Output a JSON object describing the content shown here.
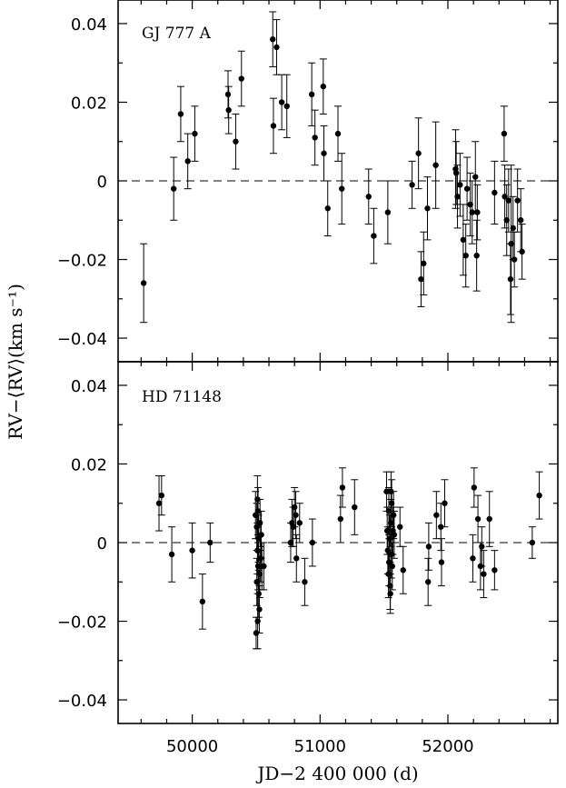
{
  "chart_data": {
    "type": "scatter",
    "shared_x": true,
    "xlabel": "JD−2 400 000 (d)",
    "ylabel": "RV−⟨RV⟩(km s⁻¹)",
    "xlim": [
      49420,
      52860
    ],
    "xticks": [
      {
        "value": 50000,
        "label": "50000"
      },
      {
        "value": 51000,
        "label": "51000"
      },
      {
        "value": 52000,
        "label": "52000"
      }
    ],
    "panels": [
      {
        "label": "GJ 777 A",
        "ylim": [
          -0.046,
          0.046
        ],
        "yticks": [
          {
            "value": 0.04,
            "label": "0.04"
          },
          {
            "value": 0.02,
            "label": "0.02"
          },
          {
            "value": 0,
            "label": "0"
          },
          {
            "value": -0.02,
            "label": "−0.02"
          },
          {
            "value": -0.04,
            "label": "−0.04"
          }
        ],
        "reference_line": 0,
        "points": [
          {
            "x": 49620,
            "y": -0.026,
            "err": 0.01
          },
          {
            "x": 49855,
            "y": -0.002,
            "err": 0.008
          },
          {
            "x": 49910,
            "y": 0.017,
            "err": 0.007
          },
          {
            "x": 49965,
            "y": 0.005,
            "err": 0.007
          },
          {
            "x": 50020,
            "y": 0.012,
            "err": 0.007
          },
          {
            "x": 50280,
            "y": 0.022,
            "err": 0.006
          },
          {
            "x": 50285,
            "y": 0.018,
            "err": 0.006
          },
          {
            "x": 50340,
            "y": 0.01,
            "err": 0.007
          },
          {
            "x": 50385,
            "y": 0.026,
            "err": 0.007
          },
          {
            "x": 50630,
            "y": 0.036,
            "err": 0.007
          },
          {
            "x": 50635,
            "y": 0.014,
            "err": 0.007
          },
          {
            "x": 50660,
            "y": 0.034,
            "err": 0.007
          },
          {
            "x": 50700,
            "y": 0.02,
            "err": 0.007
          },
          {
            "x": 50740,
            "y": 0.019,
            "err": 0.008
          },
          {
            "x": 50935,
            "y": 0.022,
            "err": 0.008
          },
          {
            "x": 50960,
            "y": 0.011,
            "err": 0.007
          },
          {
            "x": 51025,
            "y": 0.024,
            "err": 0.007
          },
          {
            "x": 51030,
            "y": 0.007,
            "err": 0.007
          },
          {
            "x": 51060,
            "y": -0.007,
            "err": 0.007
          },
          {
            "x": 51140,
            "y": 0.012,
            "err": 0.007
          },
          {
            "x": 51170,
            "y": -0.002,
            "err": 0.009
          },
          {
            "x": 51380,
            "y": -0.004,
            "err": 0.007
          },
          {
            "x": 51420,
            "y": -0.014,
            "err": 0.007
          },
          {
            "x": 51530,
            "y": -0.008,
            "err": 0.008
          },
          {
            "x": 51720,
            "y": -0.001,
            "err": 0.006
          },
          {
            "x": 51770,
            "y": 0.007,
            "err": 0.009
          },
          {
            "x": 51790,
            "y": -0.025,
            "err": 0.007
          },
          {
            "x": 51810,
            "y": -0.021,
            "err": 0.008
          },
          {
            "x": 51840,
            "y": -0.007,
            "err": 0.008
          },
          {
            "x": 51905,
            "y": 0.004,
            "err": 0.011
          },
          {
            "x": 52060,
            "y": 0.003,
            "err": 0.01
          },
          {
            "x": 52065,
            "y": 0.002,
            "err": 0.008
          },
          {
            "x": 52075,
            "y": -0.004,
            "err": 0.008
          },
          {
            "x": 52095,
            "y": -0.001,
            "err": 0.008
          },
          {
            "x": 52120,
            "y": -0.015,
            "err": 0.009
          },
          {
            "x": 52140,
            "y": -0.019,
            "err": 0.008
          },
          {
            "x": 52150,
            "y": -0.002,
            "err": 0.008
          },
          {
            "x": 52175,
            "y": -0.006,
            "err": 0.008
          },
          {
            "x": 52190,
            "y": -0.008,
            "err": 0.008
          },
          {
            "x": 52215,
            "y": 0.001,
            "err": 0.009
          },
          {
            "x": 52225,
            "y": -0.019,
            "err": 0.009
          },
          {
            "x": 52230,
            "y": -0.008,
            "err": 0.007
          },
          {
            "x": 52365,
            "y": -0.003,
            "err": 0.008
          },
          {
            "x": 52440,
            "y": 0.012,
            "err": 0.007
          },
          {
            "x": 52445,
            "y": -0.004,
            "err": 0.008
          },
          {
            "x": 52460,
            "y": -0.01,
            "err": 0.009
          },
          {
            "x": 52475,
            "y": -0.005,
            "err": 0.008
          },
          {
            "x": 52490,
            "y": -0.025,
            "err": 0.009
          },
          {
            "x": 52495,
            "y": -0.016,
            "err": 0.02
          },
          {
            "x": 52510,
            "y": -0.012,
            "err": 0.008
          },
          {
            "x": 52520,
            "y": -0.02,
            "err": 0.007
          },
          {
            "x": 52545,
            "y": -0.005,
            "err": 0.008
          },
          {
            "x": 52570,
            "y": -0.01,
            "err": 0.008
          },
          {
            "x": 52580,
            "y": -0.018,
            "err": 0.007
          }
        ]
      },
      {
        "label": "HD 71148",
        "ylim": [
          -0.046,
          0.046
        ],
        "yticks": [
          {
            "value": 0.04,
            "label": "0.04"
          },
          {
            "value": 0.02,
            "label": "0.02"
          },
          {
            "value": 0,
            "label": "0"
          },
          {
            "value": -0.02,
            "label": "−0.02"
          },
          {
            "value": -0.04,
            "label": "−0.04"
          }
        ],
        "reference_line": 0,
        "points": [
          {
            "x": 49740,
            "y": 0.01,
            "err": 0.007
          },
          {
            "x": 49760,
            "y": 0.012,
            "err": 0.005
          },
          {
            "x": 49840,
            "y": -0.003,
            "err": 0.007
          },
          {
            "x": 50000,
            "y": -0.002,
            "err": 0.007
          },
          {
            "x": 50080,
            "y": -0.015,
            "err": 0.007
          },
          {
            "x": 50140,
            "y": 0.0,
            "err": 0.005
          },
          {
            "x": 50495,
            "y": 0.007,
            "err": 0.006
          },
          {
            "x": 50500,
            "y": -0.023,
            "err": 0.004
          },
          {
            "x": 50505,
            "y": 0.004,
            "err": 0.006
          },
          {
            "x": 50505,
            "y": -0.01,
            "err": 0.006
          },
          {
            "x": 50510,
            "y": 0.011,
            "err": 0.006
          },
          {
            "x": 50510,
            "y": -0.002,
            "err": 0.006
          },
          {
            "x": 50512,
            "y": -0.02,
            "err": 0.007
          },
          {
            "x": 50515,
            "y": 0.008,
            "err": 0.006
          },
          {
            "x": 50515,
            "y": -0.006,
            "err": 0.006
          },
          {
            "x": 50518,
            "y": 0.001,
            "err": 0.006
          },
          {
            "x": 50520,
            "y": -0.013,
            "err": 0.006
          },
          {
            "x": 50525,
            "y": -0.017,
            "err": 0.006
          },
          {
            "x": 50528,
            "y": -0.008,
            "err": 0.006
          },
          {
            "x": 50530,
            "y": 0.005,
            "err": 0.006
          },
          {
            "x": 50535,
            "y": -0.004,
            "err": 0.006
          },
          {
            "x": 50540,
            "y": 0.002,
            "err": 0.006
          },
          {
            "x": 50545,
            "y": -0.006,
            "err": 0.006
          },
          {
            "x": 50560,
            "y": -0.006,
            "err": 0.006
          },
          {
            "x": 50770,
            "y": 0.0,
            "err": 0.005
          },
          {
            "x": 50780,
            "y": 0.005,
            "err": 0.006
          },
          {
            "x": 50790,
            "y": 0.004,
            "err": 0.005
          },
          {
            "x": 50800,
            "y": 0.009,
            "err": 0.005
          },
          {
            "x": 50810,
            "y": 0.007,
            "err": 0.006
          },
          {
            "x": 50815,
            "y": -0.004,
            "err": 0.006
          },
          {
            "x": 50840,
            "y": 0.005,
            "err": 0.005
          },
          {
            "x": 50880,
            "y": -0.01,
            "err": 0.006
          },
          {
            "x": 50940,
            "y": 0.0,
            "err": 0.006
          },
          {
            "x": 51160,
            "y": 0.006,
            "err": 0.006
          },
          {
            "x": 51175,
            "y": 0.014,
            "err": 0.005
          },
          {
            "x": 51270,
            "y": 0.009,
            "err": 0.007
          },
          {
            "x": 51520,
            "y": 0.013,
            "err": 0.005
          },
          {
            "x": 51525,
            "y": 0.003,
            "err": 0.006
          },
          {
            "x": 51530,
            "y": -0.002,
            "err": 0.006
          },
          {
            "x": 51535,
            "y": -0.008,
            "err": 0.006
          },
          {
            "x": 51538,
            "y": 0.008,
            "err": 0.006
          },
          {
            "x": 51540,
            "y": -0.005,
            "err": 0.006
          },
          {
            "x": 51545,
            "y": 0.001,
            "err": 0.006
          },
          {
            "x": 51548,
            "y": -0.011,
            "err": 0.006
          },
          {
            "x": 51550,
            "y": -0.013,
            "err": 0.005
          },
          {
            "x": 51553,
            "y": 0.005,
            "err": 0.006
          },
          {
            "x": 51555,
            "y": 0.013,
            "err": 0.005
          },
          {
            "x": 51558,
            "y": -0.003,
            "err": 0.006
          },
          {
            "x": 51560,
            "y": 0.01,
            "err": 0.006
          },
          {
            "x": 51565,
            "y": -0.006,
            "err": 0.006
          },
          {
            "x": 51570,
            "y": 0.003,
            "err": 0.006
          },
          {
            "x": 51575,
            "y": 0.007,
            "err": 0.006
          },
          {
            "x": 51580,
            "y": 0.002,
            "err": 0.006
          },
          {
            "x": 51625,
            "y": 0.004,
            "err": 0.005
          },
          {
            "x": 51650,
            "y": -0.007,
            "err": 0.006
          },
          {
            "x": 51845,
            "y": -0.01,
            "err": 0.006
          },
          {
            "x": 51850,
            "y": -0.001,
            "err": 0.006
          },
          {
            "x": 51910,
            "y": 0.007,
            "err": 0.006
          },
          {
            "x": 51945,
            "y": 0.004,
            "err": 0.006
          },
          {
            "x": 51950,
            "y": -0.005,
            "err": 0.006
          },
          {
            "x": 51975,
            "y": 0.01,
            "err": 0.006
          },
          {
            "x": 52195,
            "y": -0.004,
            "err": 0.006
          },
          {
            "x": 52205,
            "y": 0.014,
            "err": 0.005
          },
          {
            "x": 52235,
            "y": 0.006,
            "err": 0.006
          },
          {
            "x": 52255,
            "y": -0.006,
            "err": 0.006
          },
          {
            "x": 52265,
            "y": -0.001,
            "err": 0.005
          },
          {
            "x": 52280,
            "y": -0.008,
            "err": 0.006
          },
          {
            "x": 52325,
            "y": 0.006,
            "err": 0.007
          },
          {
            "x": 52365,
            "y": -0.007,
            "err": 0.005
          },
          {
            "x": 52660,
            "y": 0.0,
            "err": 0.004
          },
          {
            "x": 52715,
            "y": 0.012,
            "err": 0.006
          }
        ]
      }
    ]
  }
}
